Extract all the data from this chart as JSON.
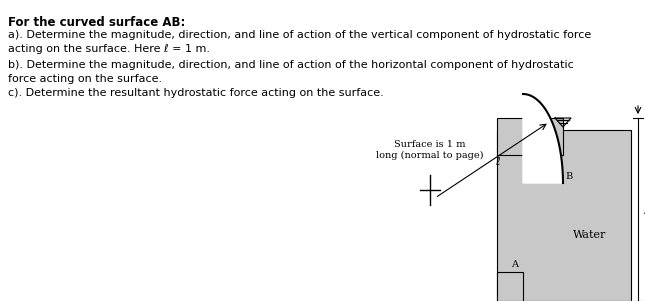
{
  "bg_color": "#ffffff",
  "text_color": "#000000",
  "gray_fill": "#c8c8c8",
  "line_color": "#000000",
  "text_lines": [
    "For the curved surface AB:",
    "a). Determine the magnitude, direction, and line of action of the vertical component of hydrostatic force",
    "acting on the surface. Here ℓ = 1 m.",
    "b). Determine the magnitude, direction, and line of action of the horizontal component of hydrostatic",
    "force acting on the surface.",
    "c). Determine the resultant hydrostatic force acting on the surface."
  ],
  "figw": 6.45,
  "figh": 3.01,
  "dpi": 100
}
